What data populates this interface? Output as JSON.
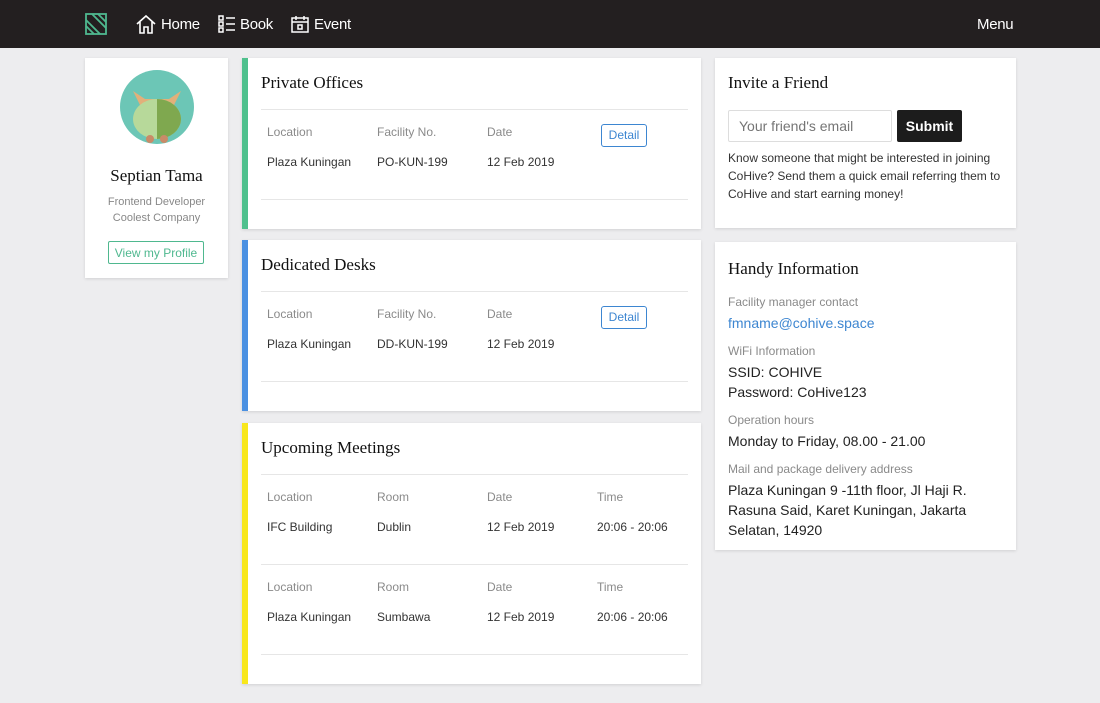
{
  "nav": {
    "items": [
      "Home",
      "Book",
      "Event"
    ],
    "menu": "Menu"
  },
  "profile": {
    "name": "Septian Tama",
    "role": "Frontend Developer",
    "company": "Coolest Company",
    "button": "View my Profile"
  },
  "private_offices": {
    "title": "Private Offices",
    "headers": [
      "Location",
      "Facility No.",
      "Date"
    ],
    "rows": [
      [
        "Plaza Kuningan",
        "PO-KUN-199",
        "12 Feb 2019"
      ]
    ],
    "action": "Detail"
  },
  "dedicated_desks": {
    "title": "Dedicated Desks",
    "headers": [
      "Location",
      "Facility No.",
      "Date"
    ],
    "rows": [
      [
        "Plaza Kuningan",
        "DD-KUN-199",
        "12 Feb 2019"
      ]
    ],
    "action": "Detail"
  },
  "meetings": {
    "title": "Upcoming Meetings",
    "headers": [
      "Location",
      "Room",
      "Date",
      "Time"
    ],
    "rows": [
      [
        "IFC Building",
        "Dublin",
        "12 Feb 2019",
        "20:06 - 20:06"
      ],
      [
        "Plaza Kuningan",
        "Sumbawa",
        "12 Feb 2019",
        "20:06 - 20:06"
      ]
    ]
  },
  "invite": {
    "title": "Invite a Friend",
    "placeholder": "Your friend's email",
    "button": "Submit",
    "text": "Know someone that might be interested in joining CoHive? Send them a quick email referring them to CoHive and start earning money!"
  },
  "handy": {
    "title": "Handy Information",
    "sections": [
      {
        "label": "Facility manager contact",
        "lines": [
          "fmname@cohive.space"
        ]
      },
      {
        "label": "WiFi Information",
        "lines": [
          "SSID: COHIVE",
          "Password: CoHive123"
        ]
      },
      {
        "label": "Operation hours",
        "lines": [
          "Monday to Friday, 08.00 - 21.00"
        ]
      },
      {
        "label": "Mail and package delivery address",
        "lines": [
          "Plaza Kuningan 9 -11th floor, Jl Haji R. Rasuna Said, Karet Kuningan, Jakarta Selatan, 14920"
        ]
      }
    ]
  }
}
